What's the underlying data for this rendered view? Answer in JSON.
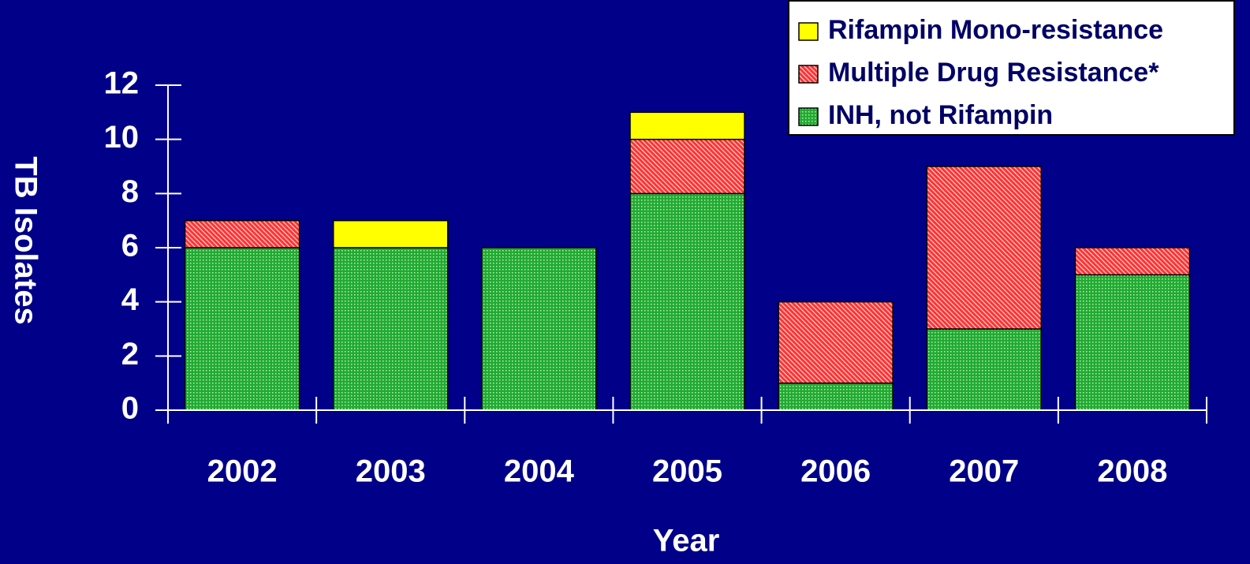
{
  "chart_data": {
    "type": "stacked_bar",
    "x_label": "Year",
    "y_label": "TB Isolates",
    "categories": [
      "2002",
      "2003",
      "2004",
      "2005",
      "2006",
      "2007",
      "2008"
    ],
    "series": [
      {
        "name": "INH, not Rifampin",
        "color": "#22aa33",
        "values": [
          6,
          6,
          6,
          8,
          1,
          3,
          5
        ]
      },
      {
        "name": "Multiple Drug Resistance*",
        "color": "#ff3333",
        "values": [
          1,
          0,
          0,
          2,
          3,
          6,
          1
        ]
      },
      {
        "name": "Rifampin Mono-resistance",
        "color": "#ffff00",
        "values": [
          0,
          1,
          0,
          1,
          0,
          0,
          0
        ]
      }
    ],
    "ylim": [
      0,
      12
    ],
    "yticks": [
      0,
      2,
      4,
      6,
      8,
      10,
      12
    ],
    "legend": "top-right"
  }
}
